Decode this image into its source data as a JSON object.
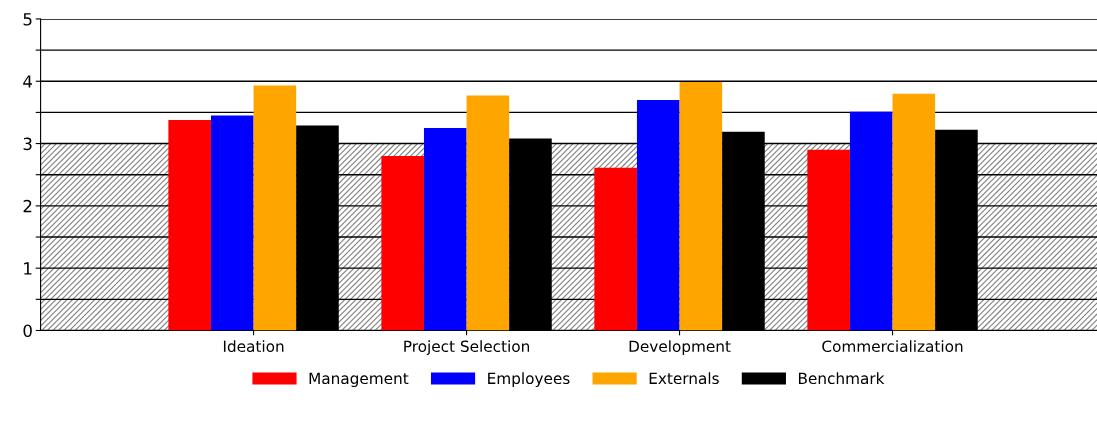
{
  "chart_data": {
    "type": "bar",
    "categories": [
      "Ideation",
      "Project Selection",
      "Development",
      "Commercialization"
    ],
    "series": [
      {
        "name": "Management",
        "color": "#ff0000",
        "values": [
          3.38,
          2.8,
          2.61,
          2.9
        ]
      },
      {
        "name": "Employees",
        "color": "#0000ff",
        "values": [
          3.45,
          3.25,
          3.7,
          3.51
        ]
      },
      {
        "name": "Externals",
        "color": "#ffa500",
        "values": [
          3.93,
          3.77,
          3.99,
          3.8
        ]
      },
      {
        "name": "Benchmark",
        "color": "#000000",
        "values": [
          3.29,
          3.08,
          3.19,
          3.22
        ]
      }
    ],
    "ylim": [
      0,
      5
    ],
    "yticks": [
      0,
      {
        "value": 0.5,
        "label": null
      },
      1,
      {
        "value": 1.5,
        "label": null
      },
      2,
      {
        "value": 2.5,
        "label": null
      },
      3,
      {
        "value": 3.5,
        "label": null
      },
      4,
      {
        "value": 4.5,
        "label": null
      },
      5
    ],
    "bands": [
      {
        "axis": "y",
        "from": 0,
        "to": 3,
        "color": "#808080"
      }
    ],
    "grid": "y",
    "legend": "bottom"
  }
}
